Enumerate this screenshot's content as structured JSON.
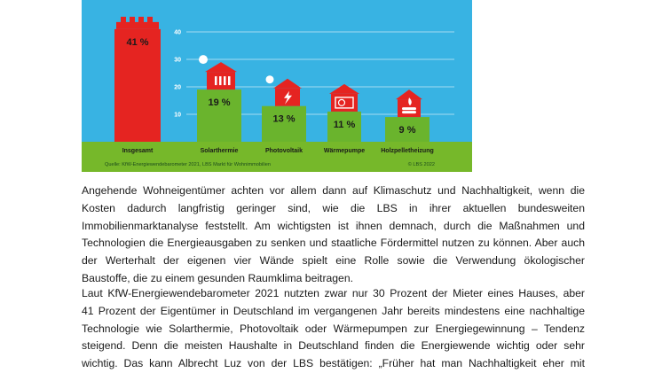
{
  "chart_data": {
    "type": "bar",
    "categories": [
      "Insgesamt",
      "Solarthermie",
      "Photovoltaik",
      "Wärmepumpe",
      "Holzpelletheizung"
    ],
    "values": [
      41,
      19,
      13,
      11,
      9
    ],
    "value_labels": [
      "41 %",
      "19 %",
      "13 %",
      "11 %",
      "9 %"
    ],
    "ylim": [
      0,
      45
    ],
    "y_ticks": [
      10,
      20,
      30,
      40
    ],
    "y_tick_labels": [
      "10",
      "20",
      "30",
      "40"
    ],
    "grid": true,
    "colors": {
      "background": "#38b3e3",
      "highlight_bar": "#e52421",
      "bar": "#6ab42d",
      "ground": "#76b82a",
      "grid": "#c9e9f6",
      "icon_house": "#e52421",
      "value_text": "#1a1a1a"
    },
    "icons": [
      "house-icon",
      "solar-thermal-house-icon",
      "photovoltaic-house-icon",
      "heat-pump-house-icon",
      "wood-pellet-house-icon"
    ],
    "source": "Quelle: KfW-Energiewendebarometer 2021, LBS Markt für Wohnimmobilien",
    "copyright": "© LBS 2022"
  },
  "article": {
    "paragraph_1_lines": [
      "Angehende Wohneigentümer achten vor allem dann auf Klimaschutz und Nachhaltigkeit, wenn die",
      "Kosten dadurch langfristig geringer sind, wie die LBS in ihrer aktuellen bundesweiten",
      "Immobilienmarktanalyse feststellt. Am wichtigsten ist ihnen demnach, durch die Maßnahmen und",
      "Technologien die Energieausgaben zu senken und staatliche Fördermittel nutzen zu können. Aber auch",
      "der Werterhalt der eigenen vier Wände spielt eine Rolle sowie die Verwendung ökologischer",
      "Baustoffe, die zu einem gesunden Raumklima beitragen."
    ],
    "paragraph_2_lines": [
      "Laut KfW-Energiewendebarometer 2021 nutzten zwar nur 30 Prozent der Mieter eines Hauses, aber",
      "41 Prozent der Eigentümer in Deutschland im vergangenen Jahr bereits mindestens eine nachhaltige",
      "Technologie wie Solarthermie, Photovoltaik oder Wärmepumpen zur Energiegewinnung – Tendenz",
      "steigend. Denn die meisten Haushalte in Deutschland finden die Energiewende wichtig oder sehr",
      "wichtig. Das kann Albrecht Luz von der LBS bestätigen: „Früher hat man Nachhaltigkeit eher mit"
    ]
  }
}
